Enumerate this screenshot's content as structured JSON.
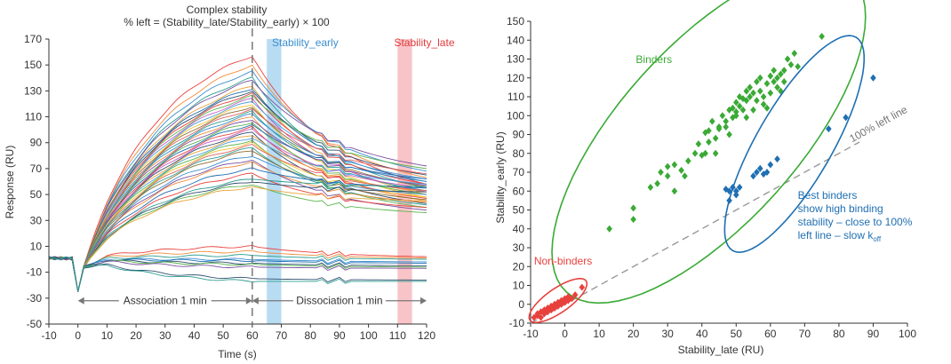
{
  "chart_data": [
    {
      "type": "line",
      "title": "Complex stability",
      "subtitle": "% left = (Stability_late/Stability_early) × 100",
      "xlabel": "Time (s)",
      "ylabel": "Response (RU)",
      "xlim": [
        -10,
        120
      ],
      "ylim": [
        -50,
        170
      ],
      "xticks": [
        -10,
        0,
        10,
        20,
        30,
        40,
        50,
        60,
        70,
        80,
        90,
        100,
        110,
        120
      ],
      "yticks": [
        -50,
        -30,
        -10,
        10,
        30,
        50,
        70,
        90,
        110,
        130,
        150,
        170
      ],
      "divider_x": 60,
      "windows": [
        {
          "name": "Stability_early",
          "x_start": 65,
          "x_end": 70,
          "color": "#b8dcf2",
          "label_color": "#3b8ed0"
        },
        {
          "name": "Stability_late",
          "x_start": 110,
          "x_end": 115,
          "color": "#f9c4c8",
          "label_color": "#e03a3a"
        }
      ],
      "phases": [
        {
          "label": "Association 1 min",
          "x_start": 0,
          "x_end": 60,
          "y": -32
        },
        {
          "label": "Dissociation 1 min",
          "x_start": 60,
          "x_end": 120,
          "y": -32
        }
      ],
      "series": [
        {
          "peak": 157,
          "end": 58,
          "color": "#e8413c"
        },
        {
          "peak": 150,
          "end": 63,
          "color": "#f08c3a"
        },
        {
          "peak": 145,
          "end": 68,
          "color": "#3b8ed0"
        },
        {
          "peak": 140,
          "end": 55,
          "color": "#2a9d8f"
        },
        {
          "peak": 138,
          "end": 72,
          "color": "#7b4fa0"
        },
        {
          "peak": 134,
          "end": 50,
          "color": "#e8a33d"
        },
        {
          "peak": 132,
          "end": 60,
          "color": "#1f6fb2"
        },
        {
          "peak": 130,
          "end": 65,
          "color": "#2f4f6f"
        },
        {
          "peak": 128,
          "end": 58,
          "color": "#e8413c"
        },
        {
          "peak": 126,
          "end": 70,
          "color": "#5bb450"
        },
        {
          "peak": 124,
          "end": 52,
          "color": "#c25cc4"
        },
        {
          "peak": 122,
          "end": 62,
          "color": "#4a9fd8"
        },
        {
          "peak": 120,
          "end": 48,
          "color": "#f2c12e"
        },
        {
          "peak": 118,
          "end": 56,
          "color": "#8c6d31"
        },
        {
          "peak": 116,
          "end": 66,
          "color": "#e06060"
        },
        {
          "peak": 114,
          "end": 53,
          "color": "#2a9d8f"
        },
        {
          "peak": 112,
          "end": 60,
          "color": "#3b8ed0"
        },
        {
          "peak": 110,
          "end": 45,
          "color": "#f08c3a"
        },
        {
          "peak": 108,
          "end": 57,
          "color": "#7b4fa0"
        },
        {
          "peak": 106,
          "end": 50,
          "color": "#5bb450"
        },
        {
          "peak": 104,
          "end": 62,
          "color": "#1f6fb2"
        },
        {
          "peak": 102,
          "end": 47,
          "color": "#e8413c"
        },
        {
          "peak": 100,
          "end": 55,
          "color": "#c25cc4"
        },
        {
          "peak": 98,
          "end": 43,
          "color": "#2f4f6f"
        },
        {
          "peak": 96,
          "end": 52,
          "color": "#e8a33d"
        },
        {
          "peak": 94,
          "end": 58,
          "color": "#4a9fd8"
        },
        {
          "peak": 92,
          "end": 40,
          "color": "#5bb450"
        },
        {
          "peak": 90,
          "end": 48,
          "color": "#f2c12e"
        },
        {
          "peak": 88,
          "end": 53,
          "color": "#e06060"
        },
        {
          "peak": 86,
          "end": 42,
          "color": "#2a9d8f"
        },
        {
          "peak": 84,
          "end": 46,
          "color": "#8c6d31"
        },
        {
          "peak": 80,
          "end": 50,
          "color": "#3b8ed0"
        },
        {
          "peak": 77,
          "end": 38,
          "color": "#7b4fa0"
        },
        {
          "peak": 75,
          "end": 44,
          "color": "#f08c3a"
        },
        {
          "peak": 70,
          "end": 55,
          "color": "#1f6fb2"
        },
        {
          "peak": 66,
          "end": 40,
          "color": "#e8413c"
        },
        {
          "peak": 62,
          "end": 56,
          "color": "#2a9d8f"
        },
        {
          "peak": 60,
          "end": 52,
          "color": "#2f4f6f"
        },
        {
          "peak": 58,
          "end": 36,
          "color": "#5bb450"
        },
        {
          "peak": 56,
          "end": 45,
          "color": "#e8a33d"
        },
        {
          "peak": 10,
          "end": 2,
          "color": "#e8413c"
        },
        {
          "peak": 6,
          "end": 1,
          "color": "#f08c3a"
        },
        {
          "peak": 3,
          "end": 0,
          "color": "#2a9d8f"
        },
        {
          "peak": 0,
          "end": -2,
          "color": "#3b8ed0"
        },
        {
          "peak": -1,
          "end": -3,
          "color": "#1f6fb2"
        },
        {
          "peak": -3,
          "end": -5,
          "color": "#2f4f6f"
        },
        {
          "peak": -4,
          "end": -6,
          "color": "#5bb450"
        },
        {
          "peak": -6,
          "end": -7,
          "color": "#7b4fa0"
        },
        {
          "peak": -15,
          "end": -16,
          "color": "#2f4f6f"
        },
        {
          "peak": -17,
          "end": -17,
          "color": "#2a9d8f"
        }
      ]
    },
    {
      "type": "scatter",
      "xlabel": "Stability_late (RU)",
      "ylabel": "Stability_early (RU)",
      "xlim": [
        -10,
        100
      ],
      "ylim": [
        -10,
        150
      ],
      "xticks": [
        -10,
        0,
        10,
        20,
        30,
        40,
        50,
        60,
        70,
        80,
        90,
        100
      ],
      "yticks": [
        -10,
        0,
        10,
        20,
        30,
        40,
        50,
        60,
        70,
        80,
        90,
        100,
        110,
        120,
        130,
        140,
        150
      ],
      "reference_line": {
        "label": "100% left line",
        "from": [
          -10,
          -10
        ],
        "to": [
          100,
          100
        ]
      },
      "groups": [
        {
          "name": "Binders",
          "label": "Binders",
          "color": "#3aaa35",
          "ellipse": {
            "cx": 42,
            "cy": 90,
            "rx": 62,
            "ry": 26,
            "angle_deg": 48
          },
          "points": [
            [
              13,
              40
            ],
            [
              20,
              45
            ],
            [
              20,
              51
            ],
            [
              25,
              62
            ],
            [
              27,
              64
            ],
            [
              28,
              70
            ],
            [
              30,
              68
            ],
            [
              30,
              73
            ],
            [
              32,
              60
            ],
            [
              32,
              74
            ],
            [
              34,
              71
            ],
            [
              35,
              68
            ],
            [
              36,
              76
            ],
            [
              38,
              80
            ],
            [
              39,
              85
            ],
            [
              40,
              79
            ],
            [
              41,
              80
            ],
            [
              41,
              91
            ],
            [
              42,
              86
            ],
            [
              42,
              92
            ],
            [
              43,
              97
            ],
            [
              44,
              88
            ],
            [
              44,
              80
            ],
            [
              45,
              94
            ],
            [
              45,
              93
            ],
            [
              46,
              100
            ],
            [
              47,
              97
            ],
            [
              47,
              94
            ],
            [
              48,
              103
            ],
            [
              48,
              90
            ],
            [
              49,
              99
            ],
            [
              49,
              104
            ],
            [
              50,
              100
            ],
            [
              50,
              107
            ],
            [
              50,
              102
            ],
            [
              51,
              110
            ],
            [
              51,
              105
            ],
            [
              52,
              109
            ],
            [
              52,
              103
            ],
            [
              53,
              108
            ],
            [
              53,
              113
            ],
            [
              53,
              99
            ],
            [
              54,
              110
            ],
            [
              54,
              115
            ],
            [
              55,
              103
            ],
            [
              55,
              112
            ],
            [
              56,
              118
            ],
            [
              56,
              108
            ],
            [
              57,
              113
            ],
            [
              57,
              120
            ],
            [
              58,
              110
            ],
            [
              58,
              106
            ],
            [
              59,
              117
            ],
            [
              59,
              104
            ],
            [
              60,
              121
            ],
            [
              60,
              112
            ],
            [
              61,
              118
            ],
            [
              61,
              124
            ],
            [
              62,
              115
            ],
            [
              62,
              120
            ],
            [
              63,
              122
            ],
            [
              63,
              113
            ],
            [
              64,
              118
            ],
            [
              64,
              124
            ],
            [
              65,
              130
            ],
            [
              66,
              127
            ],
            [
              67,
              133
            ],
            [
              68,
              126
            ],
            [
              75,
              142
            ]
          ]
        },
        {
          "name": "Best binders",
          "label": "Best binders show high binding stability – close to 100% left line – slow k",
          "label_lines": [
            "Best binders",
            "show high binding",
            "stability – close to 100%",
            "left line – slow k"
          ],
          "subscript": "off",
          "color": "#1f6fb2",
          "ellipse": {
            "cx": 67,
            "cy": 85,
            "rx": 36,
            "ry": 11,
            "angle_deg": 60
          },
          "points": [
            [
              47,
              61
            ],
            [
              48,
              55
            ],
            [
              48,
              60
            ],
            [
              49,
              62
            ],
            [
              50,
              60
            ],
            [
              50,
              58
            ],
            [
              51,
              62
            ],
            [
              55,
              68
            ],
            [
              56,
              70
            ],
            [
              57,
              72
            ],
            [
              58,
              69
            ],
            [
              59,
              70
            ],
            [
              60,
              74
            ],
            [
              62,
              77
            ],
            [
              77,
              93
            ],
            [
              82,
              99
            ],
            [
              90,
              120
            ]
          ]
        },
        {
          "name": "Non-binders",
          "label": "Non-binders",
          "color": "#e8413c",
          "ellipse": {
            "cx": -2,
            "cy": 2,
            "rx": 10,
            "ry": 3.5,
            "angle_deg": 35
          },
          "points": [
            [
              -9,
              -7
            ],
            [
              -8,
              -6
            ],
            [
              -8,
              -5
            ],
            [
              -7,
              -7
            ],
            [
              -7,
              -4
            ],
            [
              -6,
              -5
            ],
            [
              -6,
              -3
            ],
            [
              -5,
              -4
            ],
            [
              -5,
              -2
            ],
            [
              -4,
              -3
            ],
            [
              -4,
              -1
            ],
            [
              -3,
              -2
            ],
            [
              -3,
              0
            ],
            [
              -2,
              -1
            ],
            [
              -2,
              1
            ],
            [
              -1,
              0
            ],
            [
              -1,
              2
            ],
            [
              0,
              1
            ],
            [
              0,
              3
            ],
            [
              1,
              2
            ],
            [
              1,
              4
            ],
            [
              2,
              3
            ],
            [
              3,
              5
            ],
            [
              5,
              9
            ]
          ]
        }
      ]
    }
  ]
}
